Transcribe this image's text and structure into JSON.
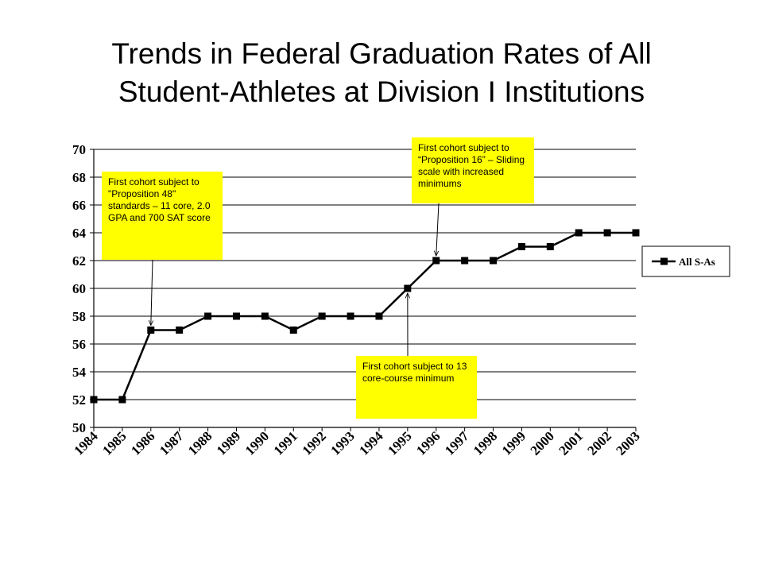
{
  "title_lines": [
    "Trends in Federal Graduation Rates of All",
    "Student-Athletes at Division I Institutions"
  ],
  "colors": {
    "line": "#000000",
    "annotation_bg": "#ffff00",
    "grid": "#000000"
  },
  "annotations": [
    {
      "text": "First cohort subject to \"Proposition 48\" standards – 11 core, 2.0 GPA and 700 SAT score",
      "points_to_year": "1986"
    },
    {
      "text": "First cohort subject to “Proposition 16” – Sliding scale with increased minimums",
      "points_to_year": "1996"
    },
    {
      "text": "First cohort subject to 13 core-course minimum",
      "points_to_year": "1995"
    }
  ],
  "chart_data": {
    "type": "line",
    "title": "Trends in Federal Graduation Rates of All Student-Athletes at Division I Institutions",
    "xlabel": "",
    "ylabel": "",
    "categories": [
      "1984",
      "1985",
      "1986",
      "1987",
      "1988",
      "1989",
      "1990",
      "1991",
      "1992",
      "1993",
      "1994",
      "1995",
      "1996",
      "1997",
      "1998",
      "1999",
      "2000",
      "2001",
      "2002",
      "2003"
    ],
    "series": [
      {
        "name": "All S-As",
        "values": [
          52,
          52,
          57,
          57,
          58,
          58,
          58,
          57,
          58,
          58,
          58,
          60,
          62,
          62,
          62,
          63,
          63,
          64,
          64,
          64
        ]
      }
    ],
    "ylim": [
      50,
      70
    ],
    "yticks": [
      50,
      52,
      54,
      56,
      58,
      60,
      62,
      64,
      66,
      68,
      70
    ],
    "grid": true,
    "legend": "right",
    "marker": "square"
  }
}
